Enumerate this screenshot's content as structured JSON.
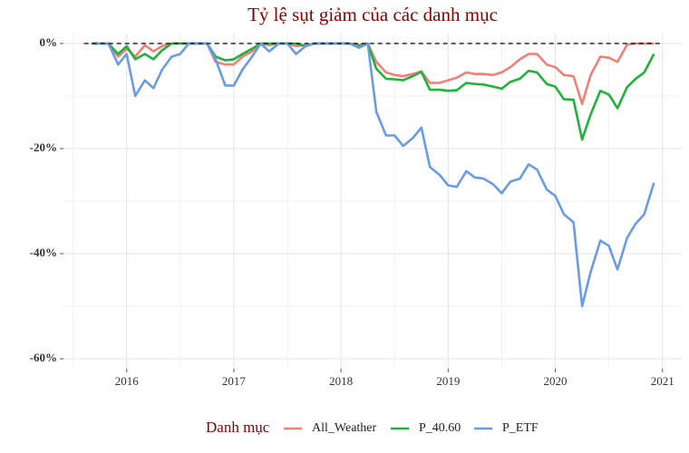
{
  "chart_data": {
    "type": "line",
    "title": "Tỷ lệ sụt giảm của các danh mục",
    "legend_title": "Danh mục",
    "legend": "bottom",
    "grid": true,
    "x": [
      2015.67,
      2015.75,
      2015.83,
      2015.92,
      2016.0,
      2016.08,
      2016.17,
      2016.25,
      2016.33,
      2016.42,
      2016.5,
      2016.58,
      2016.67,
      2016.75,
      2016.83,
      2016.92,
      2017.0,
      2017.08,
      2017.17,
      2017.25,
      2017.33,
      2017.42,
      2017.5,
      2017.58,
      2017.67,
      2017.75,
      2017.83,
      2017.92,
      2018.0,
      2018.08,
      2018.17,
      2018.25,
      2018.33,
      2018.42,
      2018.5,
      2018.58,
      2018.67,
      2018.75,
      2018.83,
      2018.92,
      2019.0,
      2019.08,
      2019.17,
      2019.25,
      2019.33,
      2019.42,
      2019.5,
      2019.58,
      2019.67,
      2019.75,
      2019.83,
      2019.92,
      2020.0,
      2020.08,
      2020.17,
      2020.25,
      2020.33,
      2020.42,
      2020.5,
      2020.58,
      2020.67,
      2020.75,
      2020.83,
      2020.92
    ],
    "series": [
      {
        "name": "All_Weather",
        "color": "#f08078",
        "values": [
          0,
          0,
          0,
          -2.5,
          -1,
          -2.5,
          -0.3,
          -1.5,
          -0.5,
          0,
          0,
          0,
          0,
          0,
          -3.5,
          -4,
          -4,
          -2.5,
          -1.5,
          0,
          -0.3,
          0,
          0,
          -0.5,
          -0.3,
          0,
          0,
          0,
          0,
          0,
          -0.3,
          0,
          -3.5,
          -5.5,
          -6,
          -6.2,
          -5.8,
          -5.3,
          -7.5,
          -7.5,
          -7,
          -6.5,
          -5.5,
          -5.8,
          -5.8,
          -6,
          -5.5,
          -4.5,
          -3,
          -2,
          -2,
          -4,
          -4.5,
          -6,
          -6.2,
          -11.5,
          -6,
          -2.5,
          -2.7,
          -3.5,
          -0.2,
          0,
          0,
          0
        ]
      },
      {
        "name": "P_40.60",
        "color": "#1fb33a",
        "values": [
          0,
          0,
          0,
          -2,
          -0.5,
          -3,
          -2,
          -3,
          -1.3,
          0,
          0,
          0,
          0,
          0,
          -2.5,
          -3.2,
          -3,
          -2,
          -1,
          0,
          0,
          0,
          0,
          0,
          -0.5,
          0,
          0,
          0,
          0,
          0,
          -0.5,
          0,
          -4.8,
          -6.7,
          -6.8,
          -7,
          -6.2,
          -5.4,
          -8.8,
          -8.8,
          -9,
          -8.9,
          -7.5,
          -7.7,
          -7.8,
          -8.2,
          -8.6,
          -7.3,
          -6.7,
          -5.2,
          -5.5,
          -7.7,
          -8.2,
          -10.6,
          -10.7,
          -18.3,
          -13.5,
          -9,
          -9.7,
          -12.3,
          -8.3,
          -6.7,
          -5.5,
          -2
        ]
      },
      {
        "name": "P_ETF",
        "color": "#6a9be8",
        "values": [
          0,
          0,
          0,
          -4,
          -2,
          -10,
          -7,
          -8.5,
          -5,
          -2.5,
          -2,
          0,
          0,
          0,
          -3,
          -8,
          -8,
          -5,
          -2.5,
          0,
          -1.5,
          0,
          0,
          -2,
          -0.5,
          0,
          0,
          0,
          0,
          0,
          -0.8,
          0,
          -13,
          -17.5,
          -17.5,
          -19.5,
          -18,
          -16,
          -23.5,
          -25,
          -27,
          -27.3,
          -24.3,
          -25.5,
          -25.7,
          -26.8,
          -28.5,
          -26.3,
          -25.7,
          -23,
          -24,
          -27.8,
          -29,
          -32.5,
          -34,
          -50,
          -43.5,
          -37.5,
          -38.5,
          -43,
          -37,
          -34.3,
          -32.5,
          -26.5
        ]
      }
    ],
    "hline": 0,
    "xlim": [
      2015.41,
      2021.18
    ],
    "xticks": [
      2016,
      2017,
      2018,
      2019,
      2020,
      2021
    ],
    "xminor": [
      2015.5,
      2016.5,
      2017.5,
      2018.5,
      2019.5,
      2020.5
    ],
    "ylim": [
      -61.9,
      1.9
    ],
    "yticks": [
      {
        "value": 0,
        "label": "0%"
      },
      {
        "value": -20,
        "label": "-20%"
      },
      {
        "value": -40,
        "label": "-40%"
      },
      {
        "value": -60,
        "label": "-60%"
      }
    ],
    "yminor": [
      -10,
      -30,
      -50
    ]
  }
}
